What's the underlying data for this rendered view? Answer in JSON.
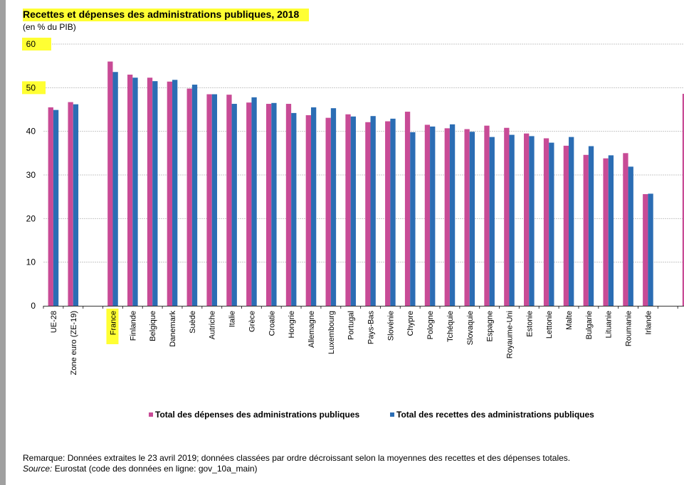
{
  "chart_data": {
    "type": "bar",
    "title": "Recettes et dépenses des administrations publiques, 2018",
    "subtitle": "(en % du PIB)",
    "xlabel": "",
    "ylabel": "",
    "ylim": [
      0,
      60
    ],
    "yticks": [
      "0",
      "10",
      "20",
      "30",
      "40",
      "50",
      "60"
    ],
    "grid": true,
    "legend_position": "bottom",
    "categories": [
      "UE-28",
      "Zone euro (ZE-19)",
      "",
      "France",
      "Finlande",
      "Belgique",
      "Danemark",
      "Suède",
      "Autriche",
      "Italie",
      "Grèce",
      "Croatie",
      "Hongrie",
      "Allemagne",
      "Luxembourg",
      "Portugal",
      "Pays-Bas",
      "Slovénie",
      "Chypre",
      "Pologne",
      "Tchéquie",
      "Slovaquie",
      "Espagne",
      "Royaume-Uni",
      "Estonie",
      "Lettonie",
      "Malte",
      "Bulgarie",
      "Lituanie",
      "Roumanie",
      "Irlande",
      "",
      ""
    ],
    "highlighted_categories": [
      "France"
    ],
    "highlighted_ticks": [
      "50",
      "60"
    ],
    "series": [
      {
        "name": "Total des dépenses des administrations publiques",
        "color": "#c84b96",
        "values": [
          45.5,
          46.7,
          null,
          56.0,
          53.0,
          52.3,
          51.4,
          49.8,
          48.5,
          48.4,
          46.6,
          46.3,
          46.3,
          43.7,
          43.1,
          43.9,
          42.1,
          42.3,
          44.5,
          41.5,
          40.7,
          40.5,
          41.3,
          40.8,
          39.5,
          38.4,
          36.7,
          34.6,
          33.8,
          35.0,
          25.6,
          null,
          48.6
        ]
      },
      {
        "name": "Total des recettes des administrations publiques",
        "color": "#2b6db4",
        "values": [
          44.9,
          46.2,
          null,
          53.6,
          52.3,
          51.5,
          51.8,
          50.7,
          48.5,
          46.3,
          47.8,
          46.5,
          44.2,
          45.5,
          45.3,
          43.4,
          43.5,
          42.9,
          39.8,
          41.1,
          41.6,
          39.9,
          38.7,
          39.2,
          38.9,
          37.4,
          38.7,
          36.6,
          34.5,
          31.9,
          25.7,
          null,
          null
        ]
      }
    ],
    "highlight_color": "#ffff33"
  },
  "footer": {
    "note": "Remarque: Données extraites le 23 avril 2019; données classées par ordre décroissant selon la moyennes des recettes et des dépenses totales.",
    "source_label": "Source:",
    "source_text": " Eurostat (code des données en ligne: gov_10a_main)"
  }
}
